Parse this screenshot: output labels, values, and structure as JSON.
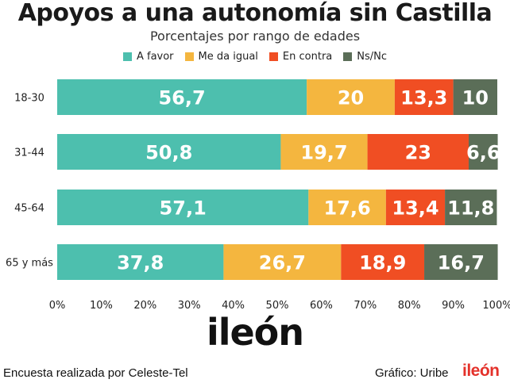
{
  "chart_data": {
    "type": "bar",
    "orientation": "horizontal",
    "stacked": true,
    "title": "Apoyos a una autonomía sin Castilla",
    "subtitle": "Porcentajes por rango de edades",
    "categories": [
      "18-30",
      "31-44",
      "45-64",
      "65 y más"
    ],
    "series": [
      {
        "name": "A favor",
        "color": "#4dbfae",
        "values": [
          56.7,
          50.8,
          57.1,
          37.8
        ],
        "labels": [
          "56,7",
          "50,8",
          "57,1",
          "37,8"
        ]
      },
      {
        "name": "Me da igual",
        "color": "#f4b63f",
        "values": [
          20,
          19.7,
          17.6,
          26.7
        ],
        "labels": [
          "20",
          "19,7",
          "17,6",
          "26,7"
        ]
      },
      {
        "name": "En contra",
        "color": "#f04e23",
        "values": [
          13.3,
          23,
          13.4,
          18.9
        ],
        "labels": [
          "13,3",
          "23",
          "13,4",
          "18,9"
        ]
      },
      {
        "name": "Ns/Nc",
        "color": "#5b6e58",
        "values": [
          10,
          6.6,
          11.8,
          16.7
        ],
        "labels": [
          "10",
          "6,6",
          "11,8",
          "16,7"
        ]
      }
    ],
    "xlim": [
      0,
      100
    ],
    "x_ticks": [
      "0%",
      "10%",
      "20%",
      "30%",
      "40%",
      "50%",
      "60%",
      "70%",
      "80%",
      "90%",
      "100%"
    ],
    "grid": false,
    "legend": "top-center"
  },
  "brand_logo": "ileón",
  "footer": {
    "source": "Encuesta realizada por Celeste-Tel",
    "credit": "Gráfico: Uribe",
    "logo": "ileón"
  }
}
